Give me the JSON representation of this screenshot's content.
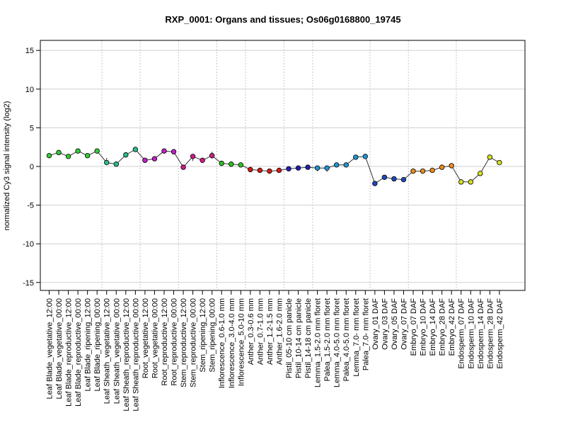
{
  "chart_data": {
    "type": "line",
    "title": "RXP_0001: Organs and tissues; Os06g0168800_19745",
    "xlabel": "",
    "ylabel": "normalized Cy3 signal intensity (log2)",
    "ylim": [
      -16,
      16
    ],
    "yticks": [
      -15,
      -10,
      -5,
      0,
      5,
      10,
      15
    ],
    "grid": {
      "horizontal": true,
      "vertical_group_separators": true
    },
    "legend": "none",
    "categories": [
      "Leaf Blade_vegetative_12:00",
      "Leaf Blade_vegetative_00:00",
      "Leaf Blade_reproductive_12:00",
      "Leaf Blade_reproductive_00:00",
      "Leaf Blade_ripening_12:00",
      "Leaf Blade_ripening_00:00",
      "Leaf Sheath_vegetative_12:00",
      "Leaf Sheath_vegetative_00:00",
      "Leaf Sheath_reproductive_12:00",
      "Leaf Sheath_reproductive_00:00",
      "Root_vegetative_12:00",
      "Root_vegetative_00:00",
      "Root_reproductive_12:00",
      "Root_reproductive_00:00",
      "Stem_reproductive_12:00",
      "Stem_reproductive_00:00",
      "Stem_ripening_12:00",
      "Stem_ripening_00:00",
      "Inflorescence_0.6-1.0 mm",
      "Inflorescence_3.0-4.0 mm",
      "Inflorescence_5.0-10 mm",
      "Anther_0.3-0.6 mm",
      "Anther_0.7-1.0 mm",
      "Anther_1.2-1.5 mm",
      "Anther_1.6-2.0 mm",
      "Pistil_05-10 cm panicle",
      "Pistil_10-14 cm panicle",
      "Pistil_14-18 cm panicle",
      "Lemma_1.5-2.0 mm floret",
      "Palea_1.5-2.0 mm floret",
      "Lemma_4.0-5.0 mm floret",
      "Palea_4.0-5.0 mm floret",
      "Lemma_7.0- mm floret",
      "Palea_7.0- mm floret",
      "Ovary_01 DAF",
      "Ovary_03 DAF",
      "Ovary_05 DAF",
      "Ovary_07 DAF",
      "Embryo_07 DAF",
      "Embryo_10 DAF",
      "Embryo_14 DAF",
      "Embryo_28 DAF",
      "Embryo_42 DAF",
      "Endosperm_07 DAF",
      "Endosperm_10 DAF",
      "Endosperm_14 DAF",
      "Endosperm_28 DAF",
      "Endosperm_42 DAF"
    ],
    "values": [
      1.4,
      1.8,
      1.3,
      2.0,
      1.4,
      2.0,
      0.5,
      0.3,
      1.5,
      2.2,
      0.8,
      1.0,
      2.0,
      1.9,
      -0.1,
      1.3,
      0.8,
      1.4,
      0.4,
      0.3,
      0.2,
      -0.4,
      -0.5,
      -0.6,
      -0.5,
      -0.3,
      -0.2,
      -0.1,
      -0.2,
      -0.2,
      0.2,
      0.2,
      1.2,
      1.3,
      -2.2,
      -1.4,
      -1.6,
      -1.7,
      -0.6,
      -0.6,
      -0.5,
      -0.1,
      0.1,
      -2.0,
      -2.0,
      -0.9,
      1.2,
      0.5
    ],
    "error_low": [
      1.4,
      1.8,
      1.3,
      2.0,
      1.4,
      2.0,
      0.3,
      0.2,
      1.5,
      2.2,
      0.7,
      0.7,
      2.0,
      1.9,
      -0.2,
      0.7,
      0.8,
      1.0,
      0.4,
      0.3,
      0.2,
      -0.4,
      -0.6,
      -0.8,
      -0.6,
      -0.3,
      -0.2,
      -0.1,
      -0.6,
      -0.7,
      0.0,
      0.2,
      0.9,
      1.3,
      -2.5,
      -1.4,
      -1.6,
      -1.7,
      -0.7,
      -0.6,
      -0.5,
      -0.1,
      0.1,
      -2.0,
      -2.0,
      -1.1,
      1.0,
      0.5
    ],
    "error_high": [
      1.4,
      1.8,
      1.3,
      2.0,
      1.4,
      2.0,
      1.1,
      0.4,
      1.5,
      2.2,
      0.9,
      1.3,
      2.0,
      1.9,
      0.0,
      1.4,
      0.8,
      1.9,
      0.4,
      0.3,
      0.2,
      -0.4,
      -0.4,
      -0.4,
      -0.4,
      -0.3,
      -0.2,
      -0.1,
      0.1,
      0.1,
      0.4,
      0.2,
      1.5,
      1.3,
      -1.9,
      -1.4,
      -1.6,
      -1.7,
      -0.5,
      -0.6,
      -0.5,
      -0.1,
      0.1,
      -2.0,
      -2.0,
      -0.7,
      1.4,
      0.5
    ],
    "point_colors": [
      "#2dcc3a",
      "#2dcc3a",
      "#2dcc3a",
      "#2dcc3a",
      "#2dcc3a",
      "#2dcc3a",
      "#26c084",
      "#26c084",
      "#26c084",
      "#26c084",
      "#c21fc4",
      "#c21fc4",
      "#c21fc4",
      "#c21fc4",
      "#d11a85",
      "#d11a85",
      "#d11a85",
      "#d11a85",
      "#28c41e",
      "#28c41e",
      "#28c41e",
      "#d91a1a",
      "#d91a1a",
      "#d91a1a",
      "#d91a1a",
      "#1f1fb8",
      "#1f1fb8",
      "#1f1fb8",
      "#1f95d1",
      "#1f95d1",
      "#1f95d1",
      "#1f95d1",
      "#1f95d1",
      "#1f95d1",
      "#1f4ab8",
      "#1f4ab8",
      "#1f4ab8",
      "#1f4ab8",
      "#ed8a1c",
      "#ed8a1c",
      "#ed8a1c",
      "#ed8a1c",
      "#ed8a1c",
      "#d6e01f",
      "#d6e01f",
      "#d6e01f",
      "#d6e01f",
      "#d6e01f"
    ],
    "group_separators_after": [
      5,
      9,
      13,
      17,
      20,
      24,
      27,
      33,
      37,
      42
    ]
  }
}
